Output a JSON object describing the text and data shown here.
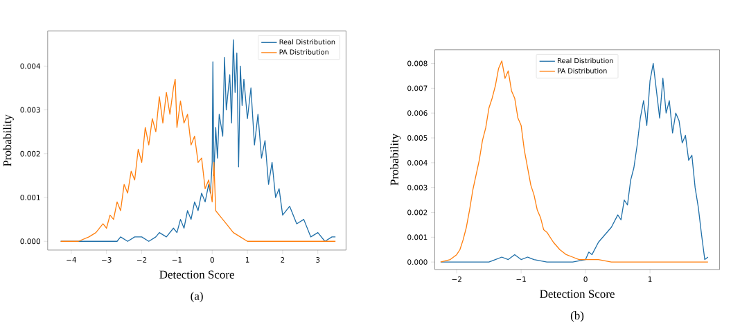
{
  "chart_data": [
    {
      "type": "line",
      "title": "(a)",
      "xlabel": "Detection Score",
      "ylabel": "Probability",
      "legend": "top right",
      "xlim": [
        -4.67,
        3.8
      ],
      "ylim": [
        -0.0002,
        0.0048
      ],
      "xticks": [
        {
          "value": -4,
          "label": "−4"
        },
        {
          "value": -3,
          "label": "−3"
        },
        {
          "value": -2,
          "label": "−2"
        },
        {
          "value": -1,
          "label": "−1"
        },
        0,
        1,
        2,
        3
      ],
      "yticks": [
        {
          "value": 0,
          "label": "0.000"
        },
        {
          "value": 0.001,
          "label": "0.001"
        },
        {
          "value": 0.002,
          "label": "0.002"
        },
        {
          "value": 0.003,
          "label": "0.003"
        },
        {
          "value": 0.004,
          "label": "0.004"
        }
      ],
      "series": [
        {
          "name": "Real Distribution",
          "color": "#1f6fa8",
          "x": [
            -4.3,
            -3.5,
            -2.7,
            -2.6,
            -2.4,
            -2.2,
            -2.0,
            -1.8,
            -1.6,
            -1.5,
            -1.3,
            -1.1,
            -1.0,
            -0.9,
            -0.8,
            -0.7,
            -0.6,
            -0.5,
            -0.4,
            -0.3,
            -0.2,
            -0.1,
            -0.05,
            0.0,
            0.02,
            0.05,
            0.1,
            0.15,
            0.2,
            0.3,
            0.35,
            0.4,
            0.5,
            0.55,
            0.6,
            0.65,
            0.7,
            0.75,
            0.8,
            0.85,
            0.9,
            1.0,
            1.1,
            1.2,
            1.3,
            1.4,
            1.5,
            1.6,
            1.7,
            1.8,
            1.9,
            2.0,
            2.2,
            2.4,
            2.6,
            2.8,
            3.0,
            3.2,
            3.4,
            3.5
          ],
          "values": [
            0,
            0,
            0,
            0.0001,
            0,
            0.0001,
            0.0001,
            0,
            0.0001,
            0.0002,
            0.0001,
            0.0003,
            0.0002,
            0.0005,
            0.0003,
            0.0007,
            0.0005,
            0.0009,
            0.0007,
            0.0011,
            0.0009,
            0.0013,
            0.0011,
            0.0018,
            0.0041,
            0.0015,
            0.0026,
            0.0019,
            0.0029,
            0.0024,
            0.0042,
            0.003,
            0.0038,
            0.0027,
            0.0046,
            0.0034,
            0.0043,
            0.0017,
            0.004,
            0.0031,
            0.0037,
            0.0028,
            0.0035,
            0.0022,
            0.0029,
            0.0019,
            0.0023,
            0.0013,
            0.0018,
            0.001,
            0.0012,
            0.0006,
            0.0008,
            0.0004,
            0.0005,
            0.0001,
            0.0002,
            0,
            0.0001,
            0.0001
          ]
        },
        {
          "name": "PA Distribution",
          "color": "#ff7f0e",
          "x": [
            -4.3,
            -3.8,
            -3.5,
            -3.3,
            -3.1,
            -3.0,
            -2.9,
            -2.8,
            -2.7,
            -2.6,
            -2.5,
            -2.4,
            -2.3,
            -2.2,
            -2.1,
            -2.0,
            -1.9,
            -1.8,
            -1.7,
            -1.6,
            -1.5,
            -1.4,
            -1.3,
            -1.2,
            -1.1,
            -1.05,
            -1.0,
            -0.9,
            -0.8,
            -0.7,
            -0.6,
            -0.5,
            -0.4,
            -0.3,
            -0.2,
            -0.1,
            0.0,
            0.05,
            0.1,
            0.2,
            0.4,
            0.6,
            0.8,
            1.0,
            1.3,
            1.6,
            2.5,
            3.5
          ],
          "values": [
            0,
            0,
            0.0001,
            0.0002,
            0.0004,
            0.0003,
            0.0006,
            0.0005,
            0.0009,
            0.0007,
            0.0013,
            0.0011,
            0.0016,
            0.0014,
            0.0021,
            0.0018,
            0.0026,
            0.0022,
            0.0028,
            0.0025,
            0.0033,
            0.0027,
            0.0034,
            0.0029,
            0.0035,
            0.0037,
            0.0026,
            0.0032,
            0.0027,
            0.0029,
            0.0022,
            0.0024,
            0.0018,
            0.0019,
            0.0012,
            0.0014,
            0.0009,
            0.0018,
            0.0007,
            0.0006,
            0.0004,
            0.0002,
            0.0001,
            0,
            0,
            0,
            0,
            0
          ]
        }
      ]
    },
    {
      "type": "line",
      "title": "(b)",
      "xlabel": "Detection Score",
      "ylabel": "Probability",
      "legend": "top",
      "xlim": [
        -2.34,
        2.08
      ],
      "ylim": [
        -0.0003,
        0.00855
      ],
      "xticks": [
        {
          "value": -2,
          "label": "−2"
        },
        {
          "value": -1,
          "label": "−1"
        },
        0,
        1
      ],
      "yticks": [
        {
          "value": 0,
          "label": "0.000"
        },
        {
          "value": 0.001,
          "label": "0.001"
        },
        {
          "value": 0.002,
          "label": "0.002"
        },
        {
          "value": 0.003,
          "label": "0.003"
        },
        {
          "value": 0.004,
          "label": "0.004"
        },
        {
          "value": 0.005,
          "label": "0.005"
        },
        {
          "value": 0.006,
          "label": "0.006"
        },
        {
          "value": 0.007,
          "label": "0.007"
        },
        {
          "value": 0.008,
          "label": "0.008"
        }
      ],
      "series": [
        {
          "name": "Real Distribution",
          "color": "#1f6fa8",
          "x": [
            -2.25,
            -1.5,
            -1.4,
            -1.3,
            -1.2,
            -1.1,
            -1.0,
            -0.9,
            -0.8,
            -0.6,
            -0.4,
            -0.2,
            0.0,
            0.05,
            0.1,
            0.2,
            0.3,
            0.4,
            0.5,
            0.55,
            0.6,
            0.65,
            0.7,
            0.75,
            0.8,
            0.85,
            0.9,
            0.95,
            1.0,
            1.05,
            1.1,
            1.15,
            1.2,
            1.25,
            1.3,
            1.35,
            1.4,
            1.45,
            1.5,
            1.55,
            1.6,
            1.65,
            1.7,
            1.75,
            1.8,
            1.85,
            1.9
          ],
          "values": [
            0,
            0,
            0.0001,
            0.0002,
            0.0001,
            0.0003,
            0.0001,
            0.0002,
            0.0001,
            0,
            0,
            0,
            0.0001,
            0.0004,
            0.0003,
            0.0008,
            0.0011,
            0.0014,
            0.0019,
            0.0017,
            0.0025,
            0.0023,
            0.0033,
            0.0038,
            0.0047,
            0.0058,
            0.0065,
            0.0055,
            0.0073,
            0.008,
            0.0069,
            0.0058,
            0.0074,
            0.006,
            0.0065,
            0.0052,
            0.006,
            0.0057,
            0.0048,
            0.0051,
            0.0041,
            0.0043,
            0.003,
            0.0022,
            0.0011,
            0.0001,
            0.0002
          ]
        },
        {
          "name": "PA Distribution",
          "color": "#ff7f0e",
          "x": [
            -2.25,
            -2.1,
            -2.0,
            -1.95,
            -1.9,
            -1.85,
            -1.8,
            -1.75,
            -1.7,
            -1.65,
            -1.6,
            -1.55,
            -1.5,
            -1.45,
            -1.4,
            -1.35,
            -1.3,
            -1.25,
            -1.2,
            -1.15,
            -1.1,
            -1.05,
            -1.0,
            -0.95,
            -0.9,
            -0.85,
            -0.8,
            -0.75,
            -0.7,
            -0.65,
            -0.6,
            -0.5,
            -0.4,
            -0.3,
            -0.2,
            -0.1,
            0.0,
            0.2,
            0.4,
            0.6,
            1.0,
            1.9
          ],
          "values": [
            0,
            0.0001,
            0.0003,
            0.0005,
            0.0009,
            0.0014,
            0.0021,
            0.0029,
            0.0035,
            0.0041,
            0.0049,
            0.0054,
            0.0062,
            0.0066,
            0.0071,
            0.0078,
            0.0081,
            0.0074,
            0.0077,
            0.0069,
            0.0066,
            0.0058,
            0.0055,
            0.0045,
            0.0038,
            0.0031,
            0.0027,
            0.0021,
            0.0018,
            0.0013,
            0.0012,
            0.0008,
            0.0005,
            0.0003,
            0.0002,
            0.0001,
            0.0001,
            0.0001,
            0,
            0,
            0,
            0
          ]
        }
      ]
    }
  ]
}
